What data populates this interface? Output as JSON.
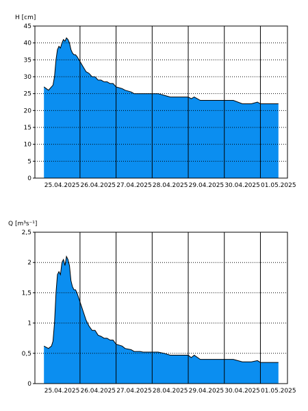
{
  "chart_data": [
    {
      "type": "area",
      "ylabel": "H [cm]",
      "ylim": [
        0,
        45
      ],
      "y_ticks": [
        "0",
        "5",
        "10",
        "15",
        "20",
        "25",
        "30",
        "35",
        "40",
        "45"
      ],
      "x_range": [
        "2025-04-24T18:00",
        "2025-05-01T18:00"
      ],
      "x_tick_labels": [
        "25.04.2025",
        "26.04.2025",
        "27.04.2025",
        "28.04.2025",
        "29.04.2025",
        "30.04.2025",
        "01.05.2025"
      ],
      "grid": true,
      "fill_color": "#0b8ef0",
      "x": [
        "2025-04-25T00:00",
        "2025-04-25T03:00",
        "2025-04-25T05:00",
        "2025-04-25T06:00",
        "2025-04-25T07:00",
        "2025-04-25T08:00",
        "2025-04-25T09:00",
        "2025-04-25T10:00",
        "2025-04-25T11:00",
        "2025-04-25T12:00",
        "2025-04-25T13:00",
        "2025-04-25T14:00",
        "2025-04-25T15:00",
        "2025-04-25T16:00",
        "2025-04-25T17:00",
        "2025-04-25T18:00",
        "2025-04-25T19:00",
        "2025-04-25T20:00",
        "2025-04-25T21:00",
        "2025-04-25T22:00",
        "2025-04-26T00:00",
        "2025-04-26T02:00",
        "2025-04-26T04:00",
        "2025-04-26T06:00",
        "2025-04-26T08:00",
        "2025-04-26T10:00",
        "2025-04-26T12:00",
        "2025-04-26T14:00",
        "2025-04-26T16:00",
        "2025-04-26T18:00",
        "2025-04-26T20:00",
        "2025-04-26T22:00",
        "2025-04-27T00:00",
        "2025-04-27T04:00",
        "2025-04-27T06:00",
        "2025-04-27T10:00",
        "2025-04-27T12:00",
        "2025-04-27T16:00",
        "2025-04-27T18:00",
        "2025-04-27T22:00",
        "2025-04-28T00:00",
        "2025-04-28T02:00",
        "2025-04-28T04:00",
        "2025-04-28T08:00",
        "2025-04-28T12:00",
        "2025-04-28T16:00",
        "2025-04-28T20:00",
        "2025-04-29T00:00",
        "2025-04-29T02:00",
        "2025-04-29T04:00",
        "2025-04-29T08:00",
        "2025-04-29T12:00",
        "2025-04-29T16:00",
        "2025-04-29T20:00",
        "2025-04-29T22:00",
        "2025-04-30T00:00",
        "2025-04-30T06:00",
        "2025-04-30T12:00",
        "2025-04-30T18:00",
        "2025-04-30T22:00",
        "2025-05-01T00:00",
        "2025-05-01T06:00",
        "2025-05-01T12:00"
      ],
      "values": [
        27,
        26,
        27,
        27.5,
        30,
        35,
        38,
        39,
        38.5,
        40,
        41,
        40.5,
        41.5,
        41,
        40,
        38,
        37,
        36.5,
        36.5,
        36,
        34.5,
        33,
        31.5,
        31,
        30,
        30,
        29,
        29,
        28.5,
        28.5,
        28,
        28,
        27,
        26.5,
        26,
        25.5,
        25,
        25,
        25,
        25,
        25,
        25,
        25,
        24.5,
        24,
        24,
        24,
        24,
        23.5,
        24,
        23,
        23,
        23,
        23,
        23,
        23,
        23,
        22,
        22,
        22.5,
        22,
        22,
        22
      ]
    },
    {
      "type": "area",
      "ylabel": "Q [m³s⁻¹]",
      "ylim": [
        0,
        2.5
      ],
      "y_ticks": [
        "0",
        "0,5",
        "1",
        "1,5",
        "2",
        "2,5"
      ],
      "x_range": [
        "2025-04-24T18:00",
        "2025-05-01T18:00"
      ],
      "x_tick_labels": [
        "25.04.2025",
        "26.04.2025",
        "27.04.2025",
        "28.04.2025",
        "29.04.2025",
        "30.04.2025",
        "01.05.2025"
      ],
      "grid": true,
      "fill_color": "#0b8ef0",
      "x": [
        "2025-04-25T00:00",
        "2025-04-25T03:00",
        "2025-04-25T05:00",
        "2025-04-25T06:00",
        "2025-04-25T07:00",
        "2025-04-25T08:00",
        "2025-04-25T09:00",
        "2025-04-25T10:00",
        "2025-04-25T11:00",
        "2025-04-25T12:00",
        "2025-04-25T13:00",
        "2025-04-25T14:00",
        "2025-04-25T15:00",
        "2025-04-25T16:00",
        "2025-04-25T17:00",
        "2025-04-25T18:00",
        "2025-04-25T19:00",
        "2025-04-25T20:00",
        "2025-04-25T21:00",
        "2025-04-25T22:00",
        "2025-04-26T00:00",
        "2025-04-26T02:00",
        "2025-04-26T04:00",
        "2025-04-26T06:00",
        "2025-04-26T08:00",
        "2025-04-26T10:00",
        "2025-04-26T12:00",
        "2025-04-26T14:00",
        "2025-04-26T16:00",
        "2025-04-26T18:00",
        "2025-04-26T20:00",
        "2025-04-26T22:00",
        "2025-04-27T00:00",
        "2025-04-27T04:00",
        "2025-04-27T06:00",
        "2025-04-27T10:00",
        "2025-04-27T12:00",
        "2025-04-27T16:00",
        "2025-04-27T18:00",
        "2025-04-27T22:00",
        "2025-04-28T00:00",
        "2025-04-28T02:00",
        "2025-04-28T04:00",
        "2025-04-28T08:00",
        "2025-04-28T12:00",
        "2025-04-28T16:00",
        "2025-04-28T20:00",
        "2025-04-29T00:00",
        "2025-04-29T02:00",
        "2025-04-29T04:00",
        "2025-04-29T08:00",
        "2025-04-29T12:00",
        "2025-04-29T16:00",
        "2025-04-29T20:00",
        "2025-04-29T22:00",
        "2025-04-30T00:00",
        "2025-04-30T06:00",
        "2025-04-30T12:00",
        "2025-04-30T18:00",
        "2025-04-30T22:00",
        "2025-05-01T00:00",
        "2025-05-01T06:00",
        "2025-05-01T12:00"
      ],
      "values": [
        0.62,
        0.58,
        0.62,
        0.7,
        1.0,
        1.5,
        1.8,
        1.85,
        1.8,
        2.0,
        2.05,
        1.95,
        2.1,
        2.05,
        1.95,
        1.7,
        1.6,
        1.55,
        1.55,
        1.5,
        1.35,
        1.2,
        1.05,
        0.95,
        0.88,
        0.88,
        0.8,
        0.78,
        0.75,
        0.75,
        0.72,
        0.72,
        0.65,
        0.62,
        0.58,
        0.56,
        0.53,
        0.53,
        0.52,
        0.52,
        0.52,
        0.52,
        0.52,
        0.5,
        0.47,
        0.47,
        0.47,
        0.47,
        0.43,
        0.47,
        0.4,
        0.4,
        0.4,
        0.4,
        0.4,
        0.4,
        0.4,
        0.36,
        0.36,
        0.38,
        0.35,
        0.35,
        0.35
      ]
    }
  ]
}
